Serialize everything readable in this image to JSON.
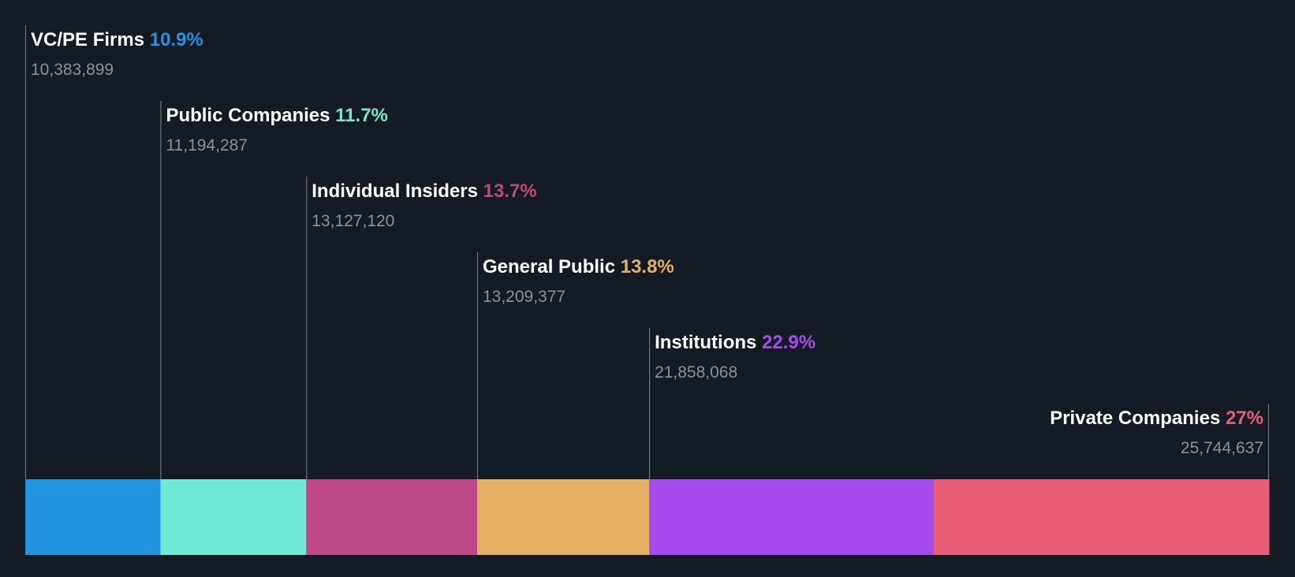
{
  "chart_data": {
    "type": "bar",
    "subtype": "stacked-horizontal-proportion",
    "title": "",
    "xlabel": "",
    "ylabel": "",
    "grid": false,
    "legend": "none",
    "categories": [
      "VC/PE Firms",
      "Public Companies",
      "Individual Insiders",
      "General Public",
      "Institutions",
      "Private Companies"
    ],
    "values": [
      10383899,
      11194287,
      13127120,
      13209377,
      21858068,
      25744637
    ],
    "segments": [
      {
        "name": "VC/PE Firms",
        "percent_label": "10.9%",
        "value": 10383899,
        "value_label": "10,383,899",
        "color": "#2394e0"
      },
      {
        "name": "Public Companies",
        "percent_label": "11.7%",
        "value": 11194287,
        "value_label": "11,194,287",
        "color": "#6fe8d6"
      },
      {
        "name": "Individual Insiders",
        "percent_label": "13.7%",
        "value": 13127120,
        "value_label": "13,127,120",
        "color": "#bd4886"
      },
      {
        "name": "General Public",
        "percent_label": "13.8%",
        "value": 13209377,
        "value_label": "13,209,377",
        "color": "#e5b063"
      },
      {
        "name": "Institutions",
        "percent_label": "22.9%",
        "value": 21858068,
        "value_label": "21,858,068",
        "color": "#a64bed"
      },
      {
        "name": "Private Companies",
        "percent_label": "27%",
        "value": 25744637,
        "value_label": "25,744,637",
        "color": "#e95e76"
      }
    ]
  }
}
